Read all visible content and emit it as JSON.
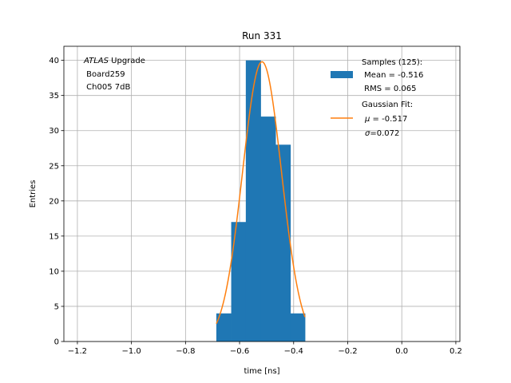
{
  "chart_data": {
    "type": "bar",
    "title": "Run 331",
    "xlabel": "time [ns]",
    "ylabel": "Entries",
    "xlim": [
      -1.25,
      0.215
    ],
    "ylim": [
      0,
      42
    ],
    "grid": true,
    "x_ticks": [
      -1.2,
      -1.0,
      -0.8,
      -0.6,
      -0.4,
      -0.2,
      0.0,
      0.2
    ],
    "x_tick_labels": [
      "−1.2",
      "−1.0",
      "−0.8",
      "−0.6",
      "−0.4",
      "−0.2",
      "0.0",
      "0.2"
    ],
    "y_ticks": [
      0,
      5,
      10,
      15,
      20,
      25,
      30,
      35,
      40
    ],
    "y_tick_labels": [
      "0",
      "5",
      "10",
      "15",
      "20",
      "25",
      "30",
      "35",
      "40"
    ],
    "histogram": {
      "name": "Samples (125):",
      "color": "#1f77b4",
      "bin_edges": [
        -0.686,
        -0.631,
        -0.577,
        -0.522,
        -0.467,
        -0.412,
        -0.358
      ],
      "counts": [
        4,
        17,
        40,
        32,
        28,
        4
      ]
    },
    "fit": {
      "name": "Gaussian Fit:",
      "color": "#ff7f0e",
      "mu": -0.517,
      "sigma": 0.072,
      "amplitude": 39.8,
      "x_range": [
        -0.686,
        -0.358
      ]
    },
    "legend_position": "upper-right",
    "legend": {
      "samples_title": "Samples (125):",
      "samples_mean": " Mean = -0.516",
      "samples_rms": " RMS = 0.065",
      "fit_title": "Gaussian Fit:",
      "fit_mu_symbol": "μ",
      "fit_mu_value": " = -0.517",
      "fit_sigma_symbol": "σ",
      "fit_sigma_value": "=0.072"
    },
    "annotation": {
      "italic": "ATLAS",
      "rest": " Upgrade",
      "line2": " Board259",
      "line3": " Ch005 7dB"
    }
  }
}
